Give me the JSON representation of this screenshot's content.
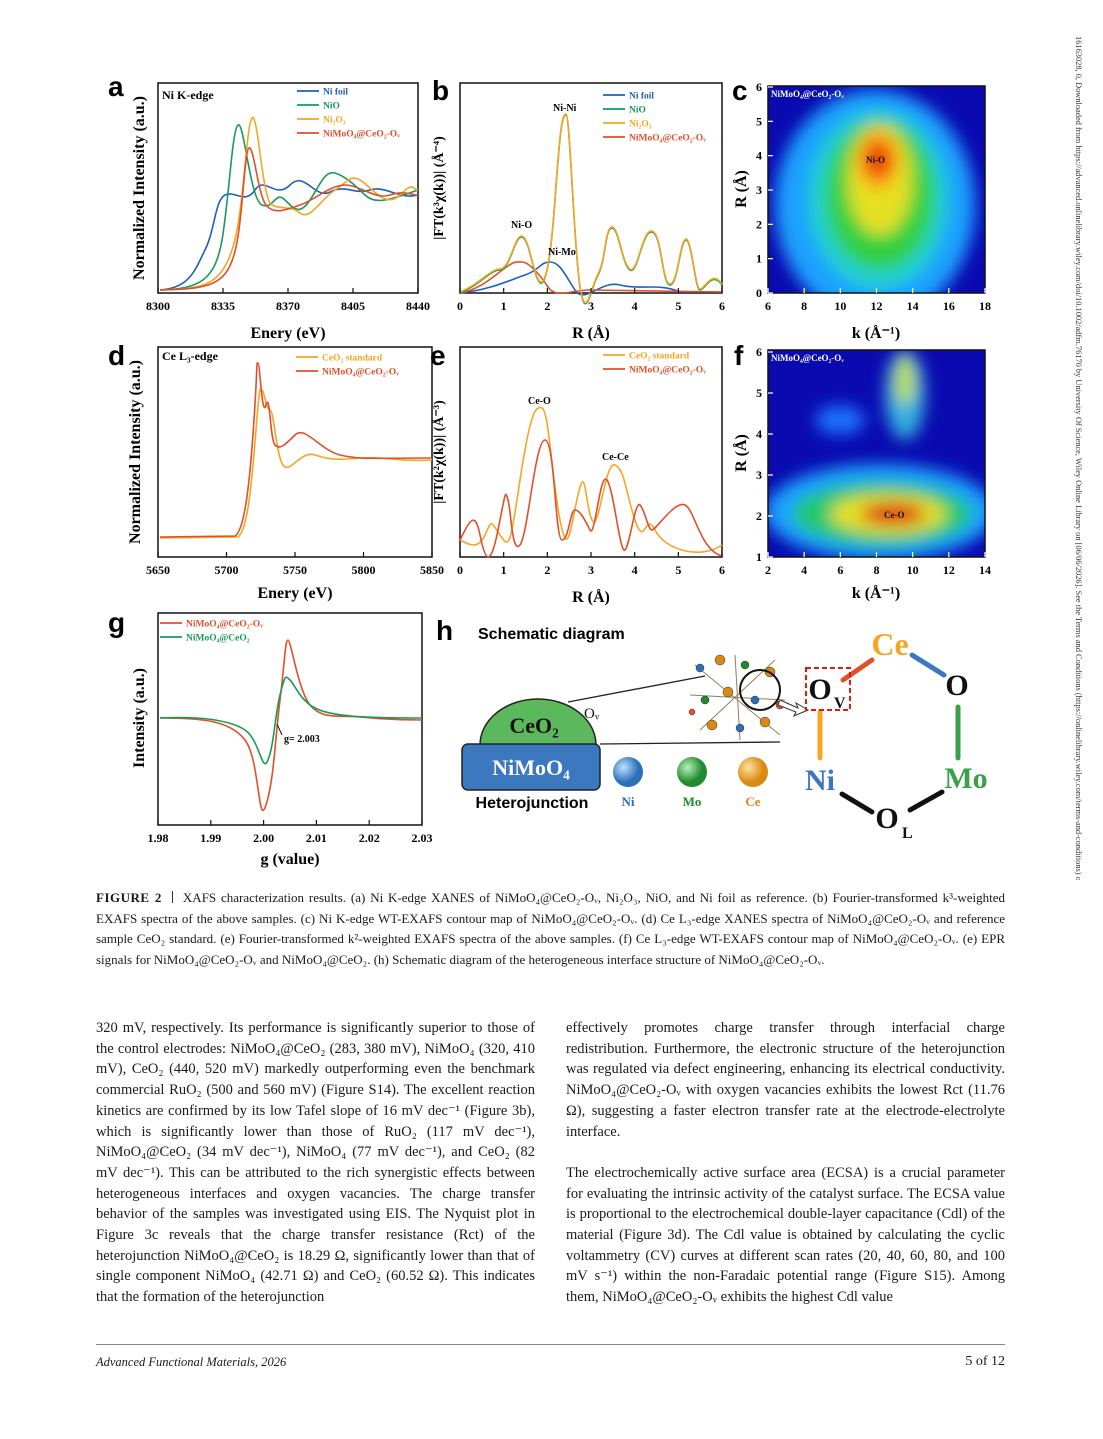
{
  "margin_note": "16163028, 0, Downloaded from https://advanced.onlinelibrary.wiley.com/doi/10.1002/adfm.76170 by University Of Science, Wiley Online Library on [06/06/2026]. See the Terms and Conditions (https://onlinelibrary.wiley.com/terms-and-conditions) on Wiley Online Library for rules of use; OA articles are governed by the applicable Creative Commons License",
  "figure": {
    "panels": {
      "a": {
        "letter": "a",
        "label": "Ni K-edge",
        "legend": [
          "Ni foil",
          "NiO",
          "Ni₂O₃",
          "NiMoO₄@CeO₂-Oᵥ"
        ],
        "xticks": [
          "8300",
          "8335",
          "8370",
          "8405",
          "8440"
        ],
        "xlabel": "Enery (eV)",
        "ylabel": "Normalized Intensity (a.u.)"
      },
      "b": {
        "letter": "b",
        "legend": [
          "Ni foil",
          "NiO",
          "Ni₂O₃",
          "NiMoO₄@CeO₂-Oᵥ"
        ],
        "peaks": [
          "Ni-Ni",
          "Ni-O",
          "Ni-Mo"
        ],
        "xticks": [
          "0",
          "1",
          "2",
          "3",
          "4",
          "5",
          "6"
        ],
        "xlabel": "R (Å)",
        "ylabel": "|FT(k³χ(k))| (Å⁻⁴)"
      },
      "c": {
        "letter": "c",
        "label": "NiMoO₄@CeO₂-Oᵥ",
        "peak": "Ni-O",
        "xticks": [
          "6",
          "8",
          "10",
          "12",
          "14",
          "16",
          "18"
        ],
        "yticks": [
          "0",
          "1",
          "2",
          "3",
          "4",
          "5",
          "6"
        ],
        "xlabel": "k (Å⁻¹)",
        "ylabel": "R (Å)"
      },
      "d": {
        "letter": "d",
        "label": "Ce L₃-edge",
        "legend": [
          "CeO₂ standard",
          "NiMoO₄@CeO₂-Oᵥ"
        ],
        "xticks": [
          "5650",
          "5700",
          "5750",
          "5800",
          "5850"
        ],
        "xlabel": "Enery (eV)",
        "ylabel": "Normalized Intensity (a.u.)"
      },
      "e": {
        "letter": "e",
        "legend": [
          "CeO₂ standard",
          "NiMoO₄@CeO₂-Oᵥ"
        ],
        "peaks": [
          "Ce-O",
          "Ce-Ce"
        ],
        "xticks": [
          "0",
          "1",
          "2",
          "3",
          "4",
          "5",
          "6"
        ],
        "xlabel": "R (Å)",
        "ylabel": "|FT(k²χ(k))| (Å⁻³)"
      },
      "f": {
        "letter": "f",
        "label": "NiMoO₄@CeO₂-Oᵥ",
        "peak": "Ce-O",
        "xticks": [
          "2",
          "4",
          "6",
          "8",
          "10",
          "12",
          "14"
        ],
        "yticks": [
          "1",
          "2",
          "3",
          "4",
          "5",
          "6"
        ],
        "xlabel": "k (Å⁻¹)",
        "ylabel": "R (Å)"
      },
      "g": {
        "letter": "g",
        "legend": [
          "NiMoO₄@CeO₂-Oᵥ",
          "NiMoO₄@CeO₂"
        ],
        "annotation": "g= 2.003",
        "xticks": [
          "1.98",
          "1.99",
          "2.00",
          "2.01",
          "2.02",
          "2.03"
        ],
        "xlabel": "g (value)",
        "ylabel": "Intensity (a.u.)"
      },
      "h": {
        "letter": "h",
        "title": "Schematic diagram",
        "support": "NiMoO₄",
        "particle": "CeO₂",
        "vacancy": "Oᵥ",
        "junction": "Heterojunction",
        "atoms": [
          "Ni",
          "Mo",
          "Ce"
        ],
        "ring": {
          "ce": "Ce",
          "o": "O",
          "mo": "Mo",
          "ol": "O",
          "ol_sub": "L",
          "ni": "Ni",
          "ov": "O",
          "ov_sub": "V"
        }
      }
    }
  },
  "caption": {
    "label": "FIGURE 2",
    "text": "XAFS characterization results. (a) Ni K-edge XANES of NiMoO₄@CeO₂-Oᵥ, Ni₂O₃, NiO, and Ni foil as reference. (b) Fourier-transformed k³-weighted EXAFS spectra of the above samples. (c) Ni K-edge WT-EXAFS contour map of NiMoO₄@CeO₂-Oᵥ. (d) Ce L₃-edge XANES spectra of NiMoO₄@CeO₂-Oᵥ and reference sample CeO₂ standard. (e) Fourier-transformed k²-weighted EXAFS spectra of the above samples. (f) Ce L₃-edge WT-EXAFS contour map of NiMoO₄@CeO₂-Oᵥ. (e) EPR signals for NiMoO₄@CeO₂-Oᵥ and NiMoO₄@CeO₂. (h) Schematic diagram of the heterogeneous interface structure of NiMoO₄@CeO₂-Oᵥ."
  },
  "body": {
    "left": [
      "320 mV, respectively. Its performance is significantly superior to those of the control electrodes: NiMoO₄@CeO₂ (283, 380 mV), NiMoO₄ (320, 410 mV), CeO₂ (440, 520 mV) markedly outperforming even the benchmark commercial RuO₂ (500 and 560 mV) (Figure S14). The excellent reaction kinetics are confirmed by its low Tafel slope of 16 mV dec⁻¹ (Figure 3b), which is significantly lower than those of RuO₂ (117 mV dec⁻¹), NiMoO₄@CeO₂ (34 mV dec⁻¹), NiMoO₄ (77 mV dec⁻¹), and CeO₂ (82 mV dec⁻¹). This can be attributed to the rich synergistic effects between heterogeneous interfaces and oxygen vacancies. The charge transfer behavior of the samples was investigated using EIS. The Nyquist plot in Figure 3c reveals that the charge transfer resistance (Rct) of the heterojunction NiMoO₄@CeO₂ is 18.29 Ω, significantly lower than that of single component NiMoO₄ (42.71 Ω) and CeO₂ (60.52 Ω). This indicates that the formation of the heterojunction"
    ],
    "right": [
      "effectively promotes charge transfer through interfacial charge redistribution. Furthermore, the electronic structure of the heterojunction was regulated via defect engineering, enhancing its electrical conductivity. NiMoO₄@CeO₂-Oᵥ with oxygen vacancies exhibits the lowest Rct (11.76 Ω), suggesting a faster electron transfer rate at the electrode-electrolyte interface.",
      "The electrochemically active surface area (ECSA) is a crucial parameter for evaluating the intrinsic activity of the catalyst surface. The ECSA value is proportional to the electrochemical double-layer capacitance (Cdl) of the material (Figure 3d). The Cdl value is obtained by calculating the cyclic voltammetry (CV) curves at different scan rates (20, 40, 60, 80, and 100 mV s⁻¹) within the non-Faradaic potential range (Figure S15). Among them, NiMoO₄@CeO₂-Oᵥ exhibits the highest Cdl value"
    ]
  },
  "footer": {
    "journal": "Advanced Functional Materials, 2026",
    "page": "5 of 12"
  }
}
